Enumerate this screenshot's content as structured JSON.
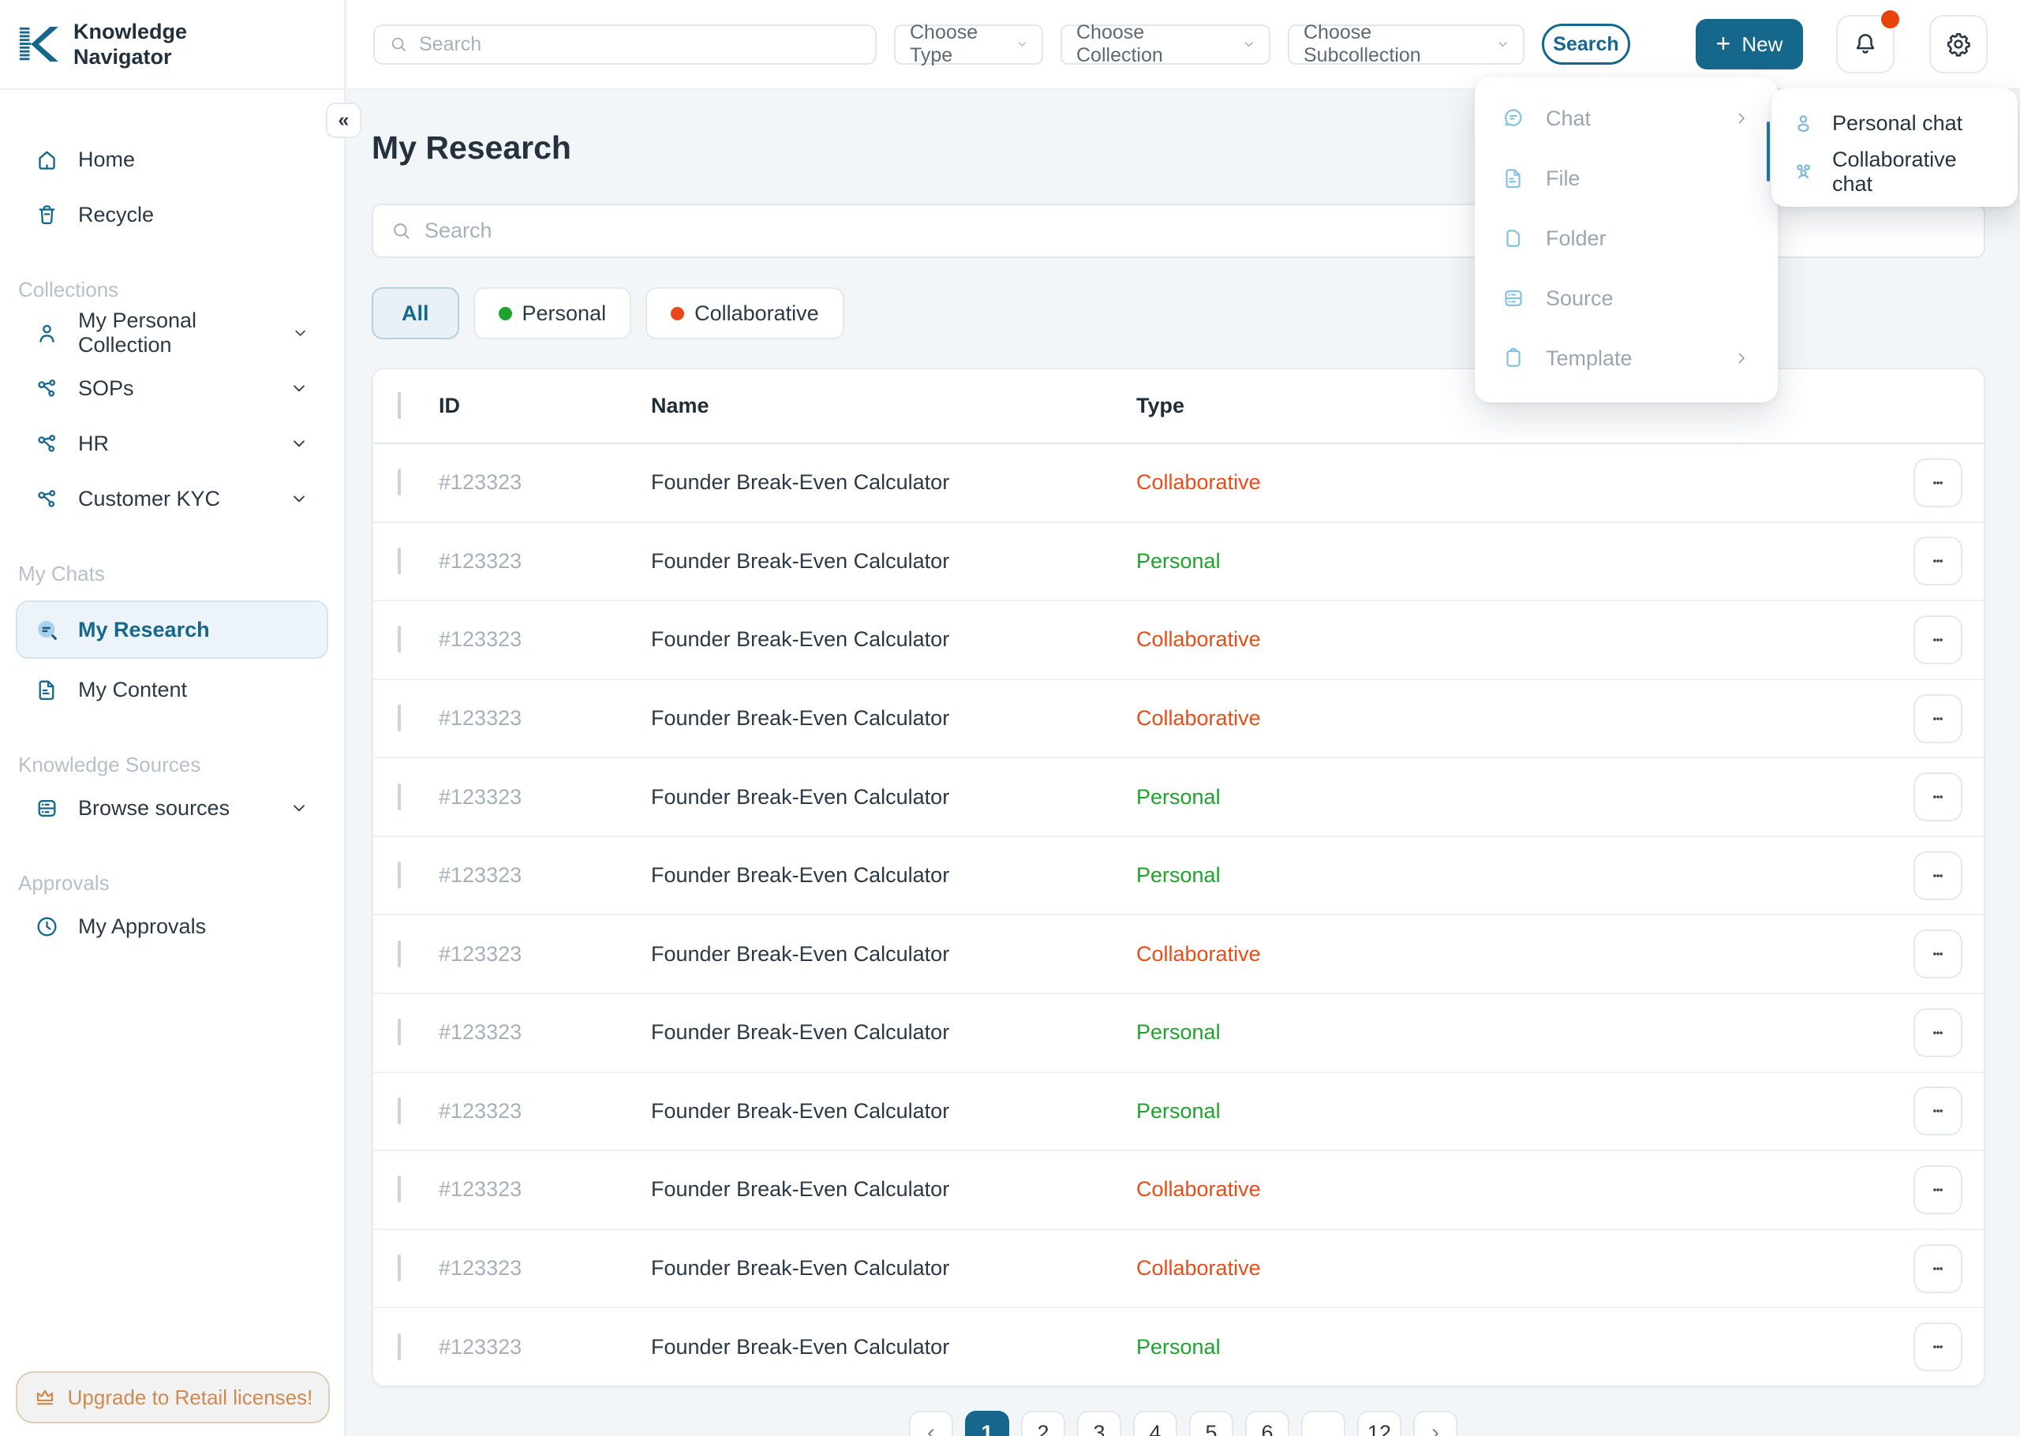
{
  "brand": {
    "line1": "Knowledge",
    "line2": "Navigator"
  },
  "header": {
    "search_placeholder": "Search",
    "filters": [
      "Choose Type",
      "Choose Collection",
      "Choose Subcollection"
    ],
    "search_button": "Search",
    "new_button": "New"
  },
  "sidebar": {
    "collapse_glyph": "«",
    "top_items": [
      {
        "icon": "home",
        "label": "Home"
      },
      {
        "icon": "trash",
        "label": "Recycle"
      }
    ],
    "sections": [
      {
        "label": "Collections",
        "items": [
          {
            "icon": "person",
            "label": "My Personal Collection",
            "chevron": true
          },
          {
            "icon": "network",
            "label": "SOPs",
            "chevron": true
          },
          {
            "icon": "network",
            "label": "HR",
            "chevron": true
          },
          {
            "icon": "network",
            "label": "Customer KYC",
            "chevron": true
          }
        ]
      },
      {
        "label": "My Chats",
        "items": [
          {
            "icon": "chatsearch",
            "label": "My Research",
            "active": true
          },
          {
            "icon": "file",
            "label": "My Content"
          }
        ]
      },
      {
        "label": "Knowledge Sources",
        "items": [
          {
            "icon": "database",
            "label": "Browse sources",
            "chevron": true
          }
        ]
      },
      {
        "label": "Approvals",
        "items": [
          {
            "icon": "clock",
            "label": "My Approvals"
          }
        ]
      }
    ],
    "upgrade_label": "Upgrade to Retail licenses!"
  },
  "main": {
    "title": "My Research",
    "search_placeholder": "Search",
    "filter_chips": [
      {
        "label": "All",
        "active": true
      },
      {
        "label": "Personal",
        "dot": "#1fa32e"
      },
      {
        "label": "Collaborative",
        "dot": "#e8481b"
      }
    ],
    "table": {
      "columns": [
        "ID",
        "Name",
        "Type"
      ],
      "rows": [
        {
          "id": "#123323",
          "name": "Founder Break-Even Calculator",
          "type": "Collaborative"
        },
        {
          "id": "#123323",
          "name": "Founder Break-Even Calculator",
          "type": "Personal"
        },
        {
          "id": "#123323",
          "name": "Founder Break-Even Calculator",
          "type": "Collaborative"
        },
        {
          "id": "#123323",
          "name": "Founder Break-Even Calculator",
          "type": "Collaborative"
        },
        {
          "id": "#123323",
          "name": "Founder Break-Even Calculator",
          "type": "Personal"
        },
        {
          "id": "#123323",
          "name": "Founder Break-Even Calculator",
          "type": "Personal"
        },
        {
          "id": "#123323",
          "name": "Founder Break-Even Calculator",
          "type": "Collaborative"
        },
        {
          "id": "#123323",
          "name": "Founder Break-Even Calculator",
          "type": "Personal"
        },
        {
          "id": "#123323",
          "name": "Founder Break-Even Calculator",
          "type": "Personal"
        },
        {
          "id": "#123323",
          "name": "Founder Break-Even Calculator",
          "type": "Collaborative"
        },
        {
          "id": "#123323",
          "name": "Founder Break-Even Calculator",
          "type": "Collaborative"
        },
        {
          "id": "#123323",
          "name": "Founder Break-Even Calculator",
          "type": "Personal"
        }
      ]
    },
    "pagination": [
      {
        "label": "‹",
        "kind": "prev"
      },
      {
        "label": "1",
        "active": true
      },
      {
        "label": "2"
      },
      {
        "label": "3"
      },
      {
        "label": "4"
      },
      {
        "label": "5"
      },
      {
        "label": "6"
      },
      {
        "label": "…",
        "kind": "ellipsis"
      },
      {
        "label": "12"
      },
      {
        "label": "›",
        "kind": "next"
      }
    ]
  },
  "new_menu": {
    "items": [
      {
        "icon": "chat",
        "label": "Chat",
        "submenu": true
      },
      {
        "icon": "file",
        "label": "File"
      },
      {
        "icon": "folder",
        "label": "Folder"
      },
      {
        "icon": "source",
        "label": "Source"
      },
      {
        "icon": "template",
        "label": "Template",
        "submenu": true
      }
    ],
    "submenu": [
      {
        "icon": "person2",
        "label": "Personal chat"
      },
      {
        "icon": "people",
        "label": "Collaborative chat"
      }
    ]
  },
  "ui_colors": {
    "accent_teal": "#15688c",
    "collaborative_red": "#e84d17",
    "personal_green": "#1fa32e",
    "notification_dot": "#e8430b",
    "upgrade_orange": "#cf8a50"
  }
}
